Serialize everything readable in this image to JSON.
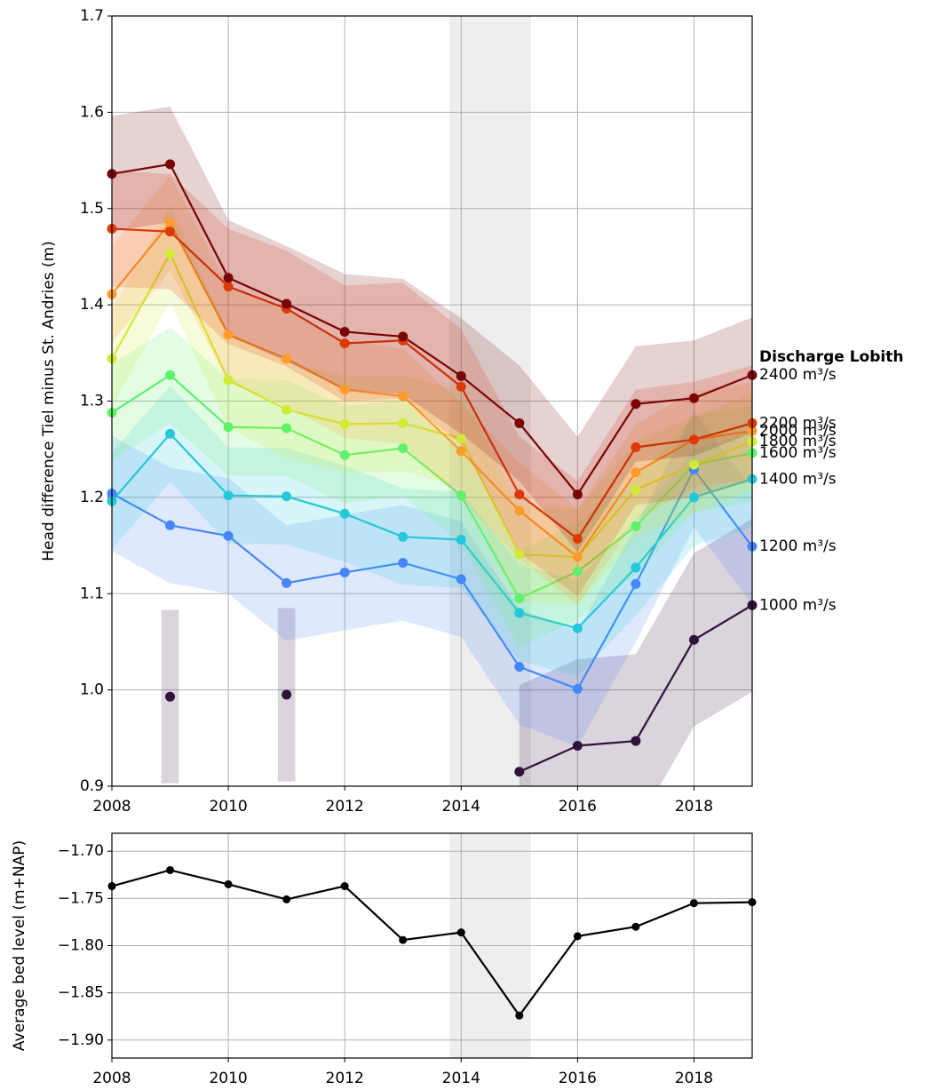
{
  "chart_data": [
    {
      "type": "line",
      "y_label": "Head difference Tiel minus St. Andries (m)",
      "legend_title": "Discharge Lobith",
      "x": [
        2008,
        2009,
        2010,
        2011,
        2012,
        2013,
        2014,
        2015,
        2016,
        2017,
        2018,
        2019
      ],
      "xlim": [
        2008,
        2019
      ],
      "xticks": [
        2008,
        2010,
        2012,
        2014,
        2016,
        2018
      ],
      "ylim": [
        0.9,
        1.7
      ],
      "yticks": [
        0.9,
        {
          "value": 1,
          "label": "1.0"
        },
        1.1,
        1.2,
        1.3,
        1.4,
        1.5,
        1.6,
        1.7
      ],
      "grid": true,
      "span": [
        2013.8,
        2015.2
      ],
      "series": [
        {
          "name": "1000 m³/s",
          "color": "#30123b",
          "error": 0.09,
          "values": [
            null,
            0.993,
            null,
            0.995,
            null,
            null,
            null,
            0.915,
            0.942,
            0.947,
            1.052,
            1.088
          ]
        },
        {
          "name": "1200 m³/s",
          "color": "#4686fb",
          "error": 0.06,
          "values": [
            1.204,
            1.171,
            1.16,
            1.111,
            1.122,
            1.132,
            1.115,
            1.024,
            1.001,
            1.11,
            1.229,
            1.149
          ]
        },
        {
          "name": "1400 m³/s",
          "color": "#25c8d8",
          "error": 0.05,
          "values": [
            1.196,
            1.266,
            1.202,
            1.201,
            1.183,
            1.159,
            1.156,
            1.08,
            1.064,
            1.127,
            1.2,
            1.219
          ]
        },
        {
          "name": "1600 m³/s",
          "color": "#5ef26a",
          "error": 0.05,
          "values": [
            1.288,
            1.327,
            1.273,
            1.272,
            1.244,
            1.251,
            1.202,
            1.095,
            1.123,
            1.17,
            1.234,
            1.246
          ]
        },
        {
          "name": "1800 m³/s",
          "color": "#d2e935",
          "error": 0.05,
          "values": [
            1.344,
            1.453,
            1.322,
            1.291,
            1.276,
            1.277,
            1.261,
            1.141,
            1.138,
            1.208,
            1.234,
            1.258
          ]
        },
        {
          "name": "2000 m³/s",
          "color": "#fe9b2d",
          "error": 0.05,
          "values": [
            1.411,
            1.485,
            1.369,
            1.344,
            1.312,
            1.305,
            1.248,
            1.186,
            1.138,
            1.226,
            1.26,
            1.269
          ]
        },
        {
          "name": "2200 m³/s",
          "color": "#db3a07",
          "error": 0.06,
          "values": [
            1.479,
            1.476,
            1.419,
            1.396,
            1.36,
            1.363,
            1.315,
            1.203,
            1.157,
            1.252,
            1.26,
            1.277
          ]
        },
        {
          "name": "2400 m³/s",
          "color": "#7a0403",
          "error": 0.06,
          "values": [
            1.536,
            1.546,
            1.428,
            1.401,
            1.372,
            1.367,
            1.326,
            1.277,
            1.203,
            1.297,
            1.303,
            1.327
          ]
        }
      ]
    },
    {
      "type": "line",
      "y_label": "Average bed level (m+NAP)",
      "x": [
        2008,
        2009,
        2010,
        2011,
        2012,
        2013,
        2014,
        2015,
        2016,
        2017,
        2018,
        2019
      ],
      "xlim": [
        2008,
        2019
      ],
      "xticks": [
        2008,
        2010,
        2012,
        2014,
        2016,
        2018
      ],
      "ylim": [
        -1.919,
        -1.681
      ],
      "yticks": [
        {
          "value": -1.9,
          "label": "−1.90"
        },
        {
          "value": -1.85,
          "label": "−1.85"
        },
        {
          "value": -1.8,
          "label": "−1.80"
        },
        {
          "value": -1.75,
          "label": "−1.75"
        },
        {
          "value": -1.7,
          "label": "−1.70"
        }
      ],
      "grid": true,
      "span": [
        2013.8,
        2015.2
      ],
      "color": "#000000",
      "values": [
        -1.737,
        -1.72,
        -1.735,
        -1.751,
        -1.737,
        -1.794,
        -1.786,
        -1.874,
        -1.79,
        -1.78,
        -1.755,
        -1.754
      ]
    }
  ]
}
